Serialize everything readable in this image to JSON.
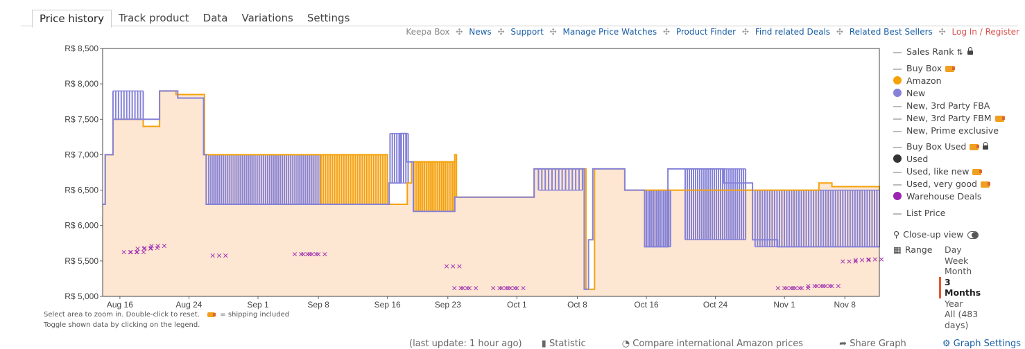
{
  "tabs": [
    "Price history",
    "Track product",
    "Data",
    "Variations",
    "Settings"
  ],
  "links": {
    "keepa_box": "Keepa Box",
    "items": [
      "News",
      "Support",
      "Manage Price Watches",
      "Product Finder",
      "Find related Deals",
      "Related Best Sellers"
    ],
    "login": "Log In / Register",
    "separator": "✣"
  },
  "legend": {
    "sales_rank": "Sales Rank",
    "buy_box": "Buy Box",
    "amazon": "Amazon",
    "new": "New",
    "new_3p_fba": "New, 3rd Party FBA",
    "new_3p_fbm": "New, 3rd Party FBM",
    "new_prime": "New, Prime exclusive",
    "buy_box_used": "Buy Box Used",
    "used": "Used",
    "used_like_new": "Used, like new",
    "used_very_good": "Used, very good",
    "warehouse": "Warehouse Deals",
    "list_price": "List Price",
    "closeup": "Close-up view",
    "range": "Range",
    "range_items": [
      "Day",
      "Week",
      "Month",
      "3 Months",
      "Year",
      "All (483 days)"
    ],
    "range_selected": "3 Months"
  },
  "hints": {
    "line1_a": "Select area to zoom in. Double-click to reset.",
    "line1_b": "= shipping included",
    "line2": "Toggle shown data by clicking on the legend."
  },
  "bottom_bar": [
    "(last update: 1 hour ago)",
    "Statistic",
    "Compare international Amazon prices",
    "Share Graph",
    "Graph Settings"
  ],
  "colors": {
    "amazon": "#f5a20a",
    "new": "#8582d8",
    "warehouse": "#9b25b0",
    "used": "#333333",
    "area": "#fde6d2"
  },
  "chart_data": {
    "type": "line",
    "ylim": [
      5000,
      8500
    ],
    "y_ticks": [
      5000,
      5500,
      6000,
      6500,
      7000,
      7500,
      8000,
      8500
    ],
    "y_tick_labels": [
      "R$ 5,000",
      "R$ 5,500",
      "R$ 6,000",
      "R$ 6,500",
      "R$ 7,000",
      "R$ 7,500",
      "R$ 8,000",
      "R$ 8,500"
    ],
    "x_range_days": [
      0,
      90
    ],
    "x_ticks": [
      {
        "label": "Aug 16",
        "day": 2
      },
      {
        "label": "Aug 24",
        "day": 10
      },
      {
        "label": "Sep 1",
        "day": 18
      },
      {
        "label": "Sep 8",
        "day": 25
      },
      {
        "label": "Sep 16",
        "day": 33
      },
      {
        "label": "Sep 23",
        "day": 40
      },
      {
        "label": "Oct 1",
        "day": 48
      },
      {
        "label": "Oct 8",
        "day": 55
      },
      {
        "label": "Oct 16",
        "day": 63
      },
      {
        "label": "Oct 24",
        "day": 71
      },
      {
        "label": "Nov 1",
        "day": 79
      },
      {
        "label": "Nov 8",
        "day": 86
      }
    ],
    "series": [
      {
        "name": "Amazon",
        "steps": [
          [
            0,
            6300
          ],
          [
            0.3,
            7000
          ],
          [
            1.2,
            7000
          ],
          [
            1.2,
            7500
          ],
          [
            4.7,
            7500
          ],
          [
            4.7,
            7400
          ],
          [
            6.6,
            7900
          ],
          [
            8.5,
            7900
          ],
          [
            8.5,
            7850
          ],
          [
            11.8,
            7850
          ],
          [
            11.8,
            7000
          ],
          [
            15.3,
            7000
          ],
          [
            15.3,
            7000
          ],
          [
            33,
            7000
          ],
          [
            33,
            6300
          ],
          [
            35.3,
            6600
          ],
          [
            35.8,
            6900
          ],
          [
            40.8,
            6900
          ],
          [
            40.8,
            7000
          ],
          [
            41,
            7000
          ],
          [
            41,
            6400
          ],
          [
            45.5,
            6400
          ],
          [
            45.5,
            6400
          ],
          [
            50,
            6400
          ],
          [
            50,
            6800
          ],
          [
            56,
            6800
          ],
          [
            56,
            5100
          ],
          [
            57,
            6800
          ],
          [
            60.5,
            6800
          ],
          [
            60.5,
            6500
          ],
          [
            83,
            6500
          ],
          [
            83,
            6600
          ],
          [
            84.5,
            6550
          ],
          [
            90,
            6500
          ]
        ]
      },
      {
        "name": "New",
        "steps": [
          [
            0,
            6300
          ],
          [
            0.3,
            7000
          ],
          [
            1.2,
            7000
          ],
          [
            1.2,
            7500
          ],
          [
            6.6,
            7500
          ],
          [
            6.6,
            7900
          ],
          [
            8.7,
            7900
          ],
          [
            8.7,
            7800
          ],
          [
            11.7,
            7800
          ],
          [
            11.7,
            7000
          ],
          [
            12,
            6300
          ],
          [
            33.2,
            6300
          ],
          [
            33.2,
            6600
          ],
          [
            34.5,
            7300
          ],
          [
            35.2,
            6900
          ],
          [
            36,
            6200
          ],
          [
            40.8,
            6200
          ],
          [
            40.8,
            6400
          ],
          [
            50,
            6400
          ],
          [
            50,
            6800
          ],
          [
            55.8,
            6800
          ],
          [
            55.8,
            5100
          ],
          [
            56.3,
            5800
          ],
          [
            56.8,
            6800
          ],
          [
            60.5,
            6800
          ],
          [
            60.5,
            6500
          ],
          [
            62.8,
            6500
          ],
          [
            62.8,
            5700
          ],
          [
            65.5,
            5700
          ],
          [
            65.5,
            6800
          ],
          [
            72,
            6800
          ],
          [
            72,
            6600
          ],
          [
            75.3,
            6600
          ],
          [
            75.3,
            5800
          ],
          [
            78.2,
            5800
          ],
          [
            78.2,
            5700
          ],
          [
            90,
            5700
          ],
          [
            90,
            6500
          ]
        ]
      }
    ],
    "bars": [
      {
        "series": "New",
        "from": 1.2,
        "to": 4.7,
        "low": 7500,
        "high": 7900,
        "n": 12
      },
      {
        "series": "New",
        "from": 12.3,
        "to": 25.2,
        "low": 6300,
        "high": 7000,
        "n": 54
      },
      {
        "series": "Amazon",
        "from": 25.3,
        "to": 33,
        "low": 6300,
        "high": 7000,
        "n": 30
      },
      {
        "series": "New",
        "from": 33.3,
        "to": 35.4,
        "low": 6600,
        "high": 7300,
        "n": 9
      },
      {
        "series": "Amazon",
        "from": 36.2,
        "to": 40.8,
        "low": 6200,
        "high": 6900,
        "n": 22
      },
      {
        "series": "New",
        "from": 50.5,
        "to": 55.6,
        "low": 6500,
        "high": 6800,
        "n": 14
      },
      {
        "series": "New",
        "from": 62.8,
        "to": 65.8,
        "low": 5700,
        "high": 6500,
        "n": 16
      },
      {
        "series": "New",
        "from": 67.5,
        "to": 74.5,
        "low": 5800,
        "high": 6800,
        "n": 30
      },
      {
        "series": "New",
        "from": 75.6,
        "to": 90,
        "low": 5700,
        "high": 6500,
        "n": 52
      }
    ],
    "warehouse_points": [
      [
        3.2,
        5630
      ],
      [
        4,
        5630
      ],
      [
        4.8,
        5680
      ],
      [
        5.6,
        5690
      ],
      [
        6.4,
        5720
      ],
      [
        13.5,
        5580
      ],
      [
        23,
        5600
      ],
      [
        24,
        5600
      ],
      [
        25,
        5600
      ],
      [
        40.6,
        5430
      ],
      [
        41.5,
        5120
      ],
      [
        42.5,
        5120
      ],
      [
        46,
        5120
      ],
      [
        47,
        5120
      ],
      [
        48,
        5120
      ],
      [
        79,
        5120
      ],
      [
        80,
        5120
      ],
      [
        81,
        5120
      ],
      [
        82.5,
        5150
      ],
      [
        83.5,
        5150
      ],
      [
        84.5,
        5150
      ],
      [
        86.5,
        5500
      ],
      [
        88,
        5520
      ],
      [
        89.5,
        5530
      ]
    ]
  }
}
